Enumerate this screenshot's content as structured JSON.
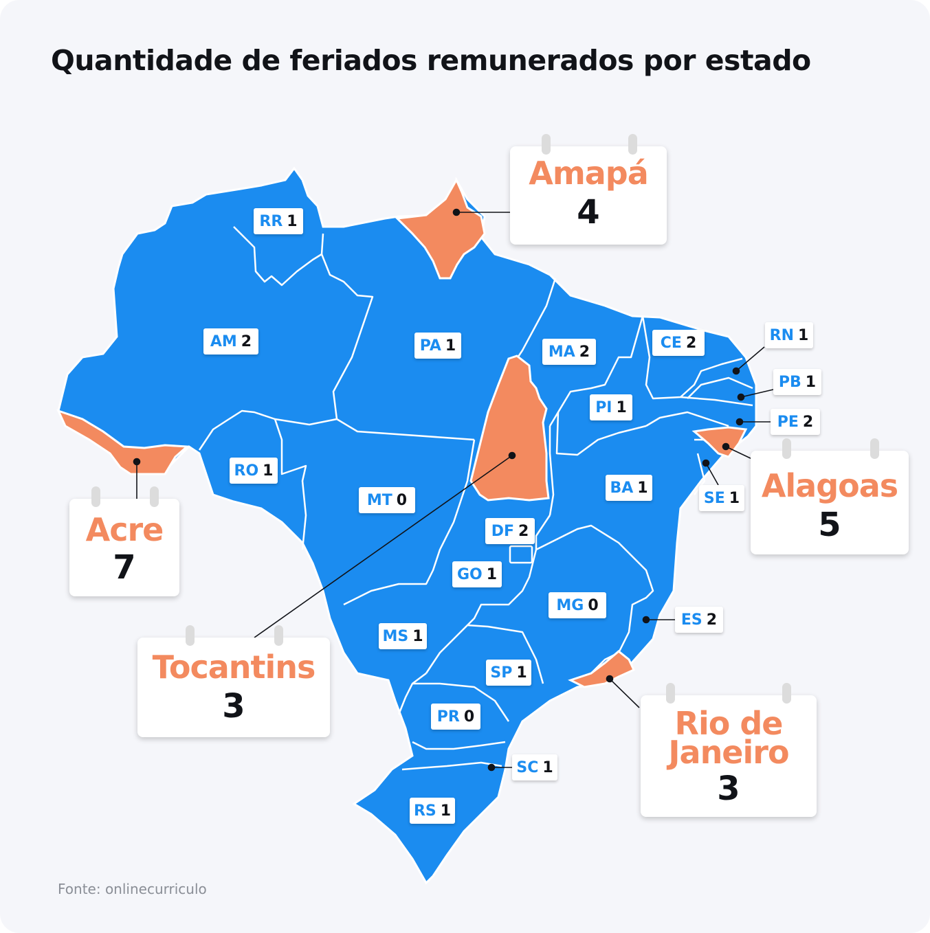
{
  "title": "Quantidade de feriados remunerados por estado",
  "source": "Fonte: onlinecurriculo",
  "colors": {
    "base": "#1b8cf0",
    "highlight": "#f38a5f",
    "border": "#ffffff",
    "background": "#f5f6fa"
  },
  "states": [
    {
      "abbr": "RR",
      "value": "1"
    },
    {
      "abbr": "AM",
      "value": "2"
    },
    {
      "abbr": "PA",
      "value": "1"
    },
    {
      "abbr": "MA",
      "value": "2"
    },
    {
      "abbr": "CE",
      "value": "2"
    },
    {
      "abbr": "RN",
      "value": "1"
    },
    {
      "abbr": "PB",
      "value": "1"
    },
    {
      "abbr": "PE",
      "value": "2"
    },
    {
      "abbr": "PI",
      "value": "1"
    },
    {
      "abbr": "RO",
      "value": "1"
    },
    {
      "abbr": "MT",
      "value": "0"
    },
    {
      "abbr": "BA",
      "value": "1"
    },
    {
      "abbr": "SE",
      "value": "1"
    },
    {
      "abbr": "DF",
      "value": "2"
    },
    {
      "abbr": "GO",
      "value": "1"
    },
    {
      "abbr": "MG",
      "value": "0"
    },
    {
      "abbr": "ES",
      "value": "2"
    },
    {
      "abbr": "MS",
      "value": "1"
    },
    {
      "abbr": "SP",
      "value": "1"
    },
    {
      "abbr": "PR",
      "value": "0"
    },
    {
      "abbr": "SC",
      "value": "1"
    },
    {
      "abbr": "RS",
      "value": "1"
    }
  ],
  "highlights": [
    {
      "name": "Amapá",
      "value": "4"
    },
    {
      "name": "Acre",
      "value": "7"
    },
    {
      "name": "Tocantins",
      "value": "3"
    },
    {
      "name": "Alagoas",
      "value": "5"
    },
    {
      "name_line1": "Rio de",
      "name_line2": "Janeiro",
      "value": "3"
    }
  ]
}
